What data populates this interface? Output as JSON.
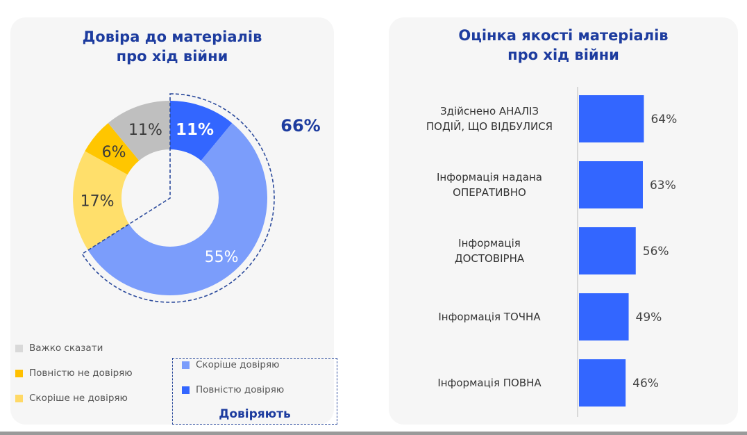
{
  "chart_data": [
    {
      "type": "pie",
      "title": "Довіра до матеріалів про хід війни",
      "title_lines": [
        "Довіра до матеріалів",
        "про хід війни"
      ],
      "donut": true,
      "slices": [
        {
          "label": "Повністю довіряю",
          "value": 11,
          "display": "11%",
          "color": "#3366ff"
        },
        {
          "label": "Скоріше  довіряю",
          "value": 55,
          "display": "55%",
          "color": "#7b9dfb"
        },
        {
          "label": "Скоріше не довіряю",
          "value": 17,
          "display": "17%",
          "color": "#ffdf6b"
        },
        {
          "label": "Повністю не довіряю",
          "value": 6,
          "display": "6%",
          "color": "#ffc600"
        },
        {
          "label": "Важко сказати",
          "value": 11,
          "display": "11%",
          "color": "#bfbfbf"
        }
      ],
      "group": {
        "label": "Довіряють",
        "value": 66,
        "display": "66%",
        "color": "#1d3c9f"
      },
      "legend_left": [
        {
          "label": "Важко сказати",
          "color": "#d9d9d9"
        },
        {
          "label": "Повністю не довіряю",
          "color": "#ffc000"
        },
        {
          "label": "Скоріше не довіряю",
          "color": "#ffd966"
        }
      ],
      "legend_right": [
        {
          "label": "Скоріше  довіряю",
          "color": "#7b9dfb"
        },
        {
          "label": "Повністю довіряю",
          "color": "#3366ff"
        }
      ]
    },
    {
      "type": "bar",
      "orientation": "horizontal",
      "title": "Оцінка якості матеріалів про хід війни",
      "title_lines": [
        "Оцінка якості матеріалів",
        "про хід війни"
      ],
      "categories": [
        [
          "Здійснено АНАЛІЗ",
          "ПОДІЙ, ЩО ВІДБУЛИСЯ"
        ],
        [
          "Інформація надана",
          "ОПЕРАТИВНО"
        ],
        [
          "Інформація",
          "ДОСТОВІРНА"
        ],
        [
          "Інформація ТОЧНА"
        ],
        [
          "Інформація ПОВНА"
        ]
      ],
      "values": [
        64,
        63,
        56,
        49,
        46
      ],
      "labels": [
        "64%",
        "63%",
        "56%",
        "49%",
        "46%"
      ],
      "color": "#3366ff",
      "xlim": [
        0,
        100
      ]
    }
  ]
}
